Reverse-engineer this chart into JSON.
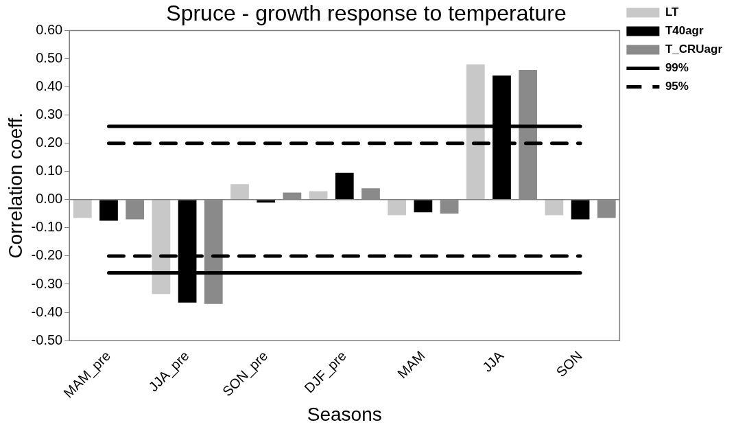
{
  "chart_data": {
    "type": "bar",
    "title": "Spruce - growth response to temperature",
    "xlabel": "Seasons",
    "ylabel": "Correlation coeff.",
    "categories": [
      "MAM_pre",
      "JJA_pre",
      "SON_pre",
      "DJF_pre",
      "MAM",
      "JJA",
      "SON"
    ],
    "series": [
      {
        "name": "LT",
        "color": "#c8c8c8",
        "values": [
          -0.065,
          -0.335,
          0.055,
          0.03,
          -0.055,
          0.48,
          -0.055
        ]
      },
      {
        "name": "T40agr",
        "color": "#000000",
        "values": [
          -0.075,
          -0.365,
          -0.01,
          0.095,
          -0.045,
          0.44,
          -0.07
        ]
      },
      {
        "name": "T_CRUagr",
        "color": "#8a8a8a",
        "values": [
          -0.07,
          -0.37,
          0.025,
          0.04,
          -0.05,
          0.46,
          -0.065
        ]
      },
      {
        "name": "99%",
        "type": "line",
        "color": "#000000",
        "line_style": "solid",
        "values": [
          0.26,
          0.26,
          0.26,
          0.26,
          0.26,
          0.26,
          0.26
        ]
      },
      {
        "type": "line",
        "color": "#000000",
        "line_style": "solid",
        "values": [
          -0.26,
          -0.26,
          -0.26,
          -0.26,
          -0.26,
          -0.26,
          -0.26
        ]
      },
      {
        "name": "95%",
        "type": "line",
        "color": "#000000",
        "line_style": "dashed",
        "values": [
          0.2,
          0.2,
          0.2,
          0.2,
          0.2,
          0.2,
          0.2
        ]
      },
      {
        "type": "line",
        "color": "#000000",
        "line_style": "dashed",
        "values": [
          -0.2,
          -0.2,
          -0.2,
          -0.2,
          -0.2,
          -0.2,
          -0.2
        ]
      }
    ],
    "ylim": [
      -0.5,
      0.6
    ],
    "yticks": [
      {
        "value": 0.6,
        "label": "0.60"
      },
      {
        "value": 0.5,
        "label": "0.50"
      },
      {
        "value": 0.4,
        "label": "0.40"
      },
      {
        "value": 0.3,
        "label": "0.30"
      },
      {
        "value": 0.2,
        "label": "0.20"
      },
      {
        "value": 0.1,
        "label": "0.10"
      },
      {
        "value": 0,
        "label": "0.00"
      },
      {
        "value": -0.1,
        "label": "-0.10"
      },
      {
        "value": -0.2,
        "label": "-0.20"
      },
      {
        "value": -0.3,
        "label": "-0.30"
      },
      {
        "value": -0.4,
        "label": "-0.40"
      },
      {
        "value": -0.5,
        "label": "-0.50"
      }
    ],
    "legend": "right",
    "marker": "none"
  }
}
